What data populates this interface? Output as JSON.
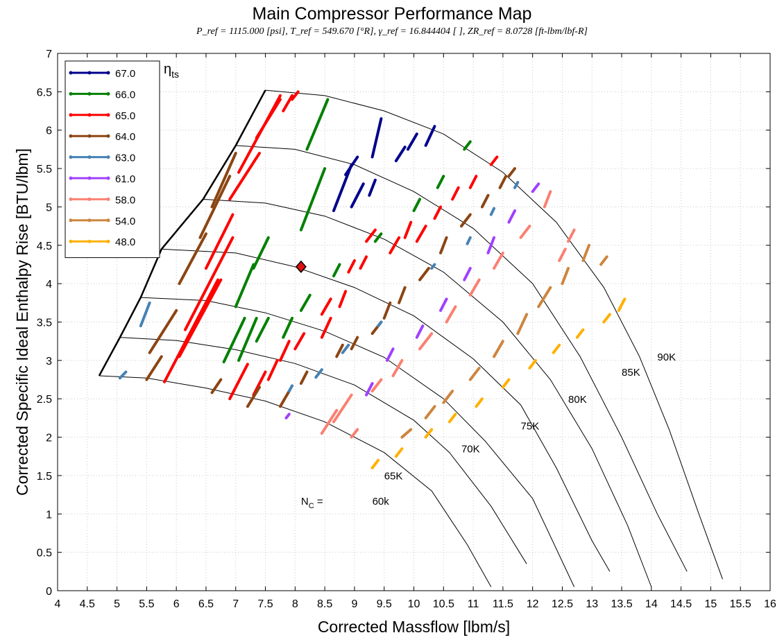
{
  "chart_data": {
    "type": "scatter",
    "title": "Main Compressor Performance Map",
    "subtitle": "P_ref = 1115.000 [psi],   T_ref = 549.670 [°R],   γ_ref = 16.844404 [ ],   ZR_ref = 8.0728 [ft-lbm/lbf-R]",
    "xlabel": "Corrected Massflow [lbm/s]",
    "ylabel": "Corrected Specific Ideal Enthalpy Rise [BTU/lbm]",
    "xlim": [
      4,
      16
    ],
    "ylim": [
      0,
      7
    ],
    "xticks": [
      "4",
      "4.5",
      "5",
      "5.5",
      "6",
      "6.5",
      "7",
      "7.5",
      "8",
      "8.5",
      "9",
      "9.5",
      "10",
      "10.5",
      "11",
      "11.5",
      "12",
      "12.5",
      "13",
      "13.5",
      "14",
      "14.5",
      "15",
      "15.5",
      "16"
    ],
    "yticks": [
      "0",
      "0.5",
      "1",
      "1.5",
      "2",
      "2.5",
      "3",
      "3.5",
      "4",
      "4.5",
      "5",
      "5.5",
      "6",
      "6.5",
      "7"
    ],
    "grid": true,
    "legend_title": "η",
    "legend_title_sub": "ts",
    "legend_position": "top-left",
    "surge_line": [
      [
        4.7,
        2.8
      ],
      [
        5.05,
        3.3
      ],
      [
        5.4,
        3.82
      ],
      [
        5.75,
        4.45
      ],
      [
        6.45,
        5.1
      ],
      [
        7.0,
        5.8
      ],
      [
        7.5,
        6.52
      ]
    ],
    "speed_lines": [
      {
        "label": "60k",
        "prefix": "N",
        "prefix_sub": "C",
        "points": [
          [
            4.7,
            2.8
          ],
          [
            5.5,
            2.77
          ],
          [
            6.5,
            2.64
          ],
          [
            7.5,
            2.47
          ],
          [
            8.5,
            2.2
          ],
          [
            9.5,
            1.8
          ],
          [
            10.3,
            1.3
          ],
          [
            10.9,
            0.6
          ],
          [
            11.3,
            0.05
          ]
        ]
      },
      {
        "label": "65K",
        "points": [
          [
            5.05,
            3.3
          ],
          [
            6,
            3.26
          ],
          [
            7,
            3.14
          ],
          [
            8,
            2.96
          ],
          [
            9,
            2.68
          ],
          [
            10,
            2.22
          ],
          [
            10.6,
            1.8
          ],
          [
            11.3,
            1.1
          ],
          [
            11.9,
            0.35
          ]
        ]
      },
      {
        "label": "70K",
        "points": [
          [
            5.4,
            3.82
          ],
          [
            6.5,
            3.78
          ],
          [
            7.5,
            3.62
          ],
          [
            8.5,
            3.38
          ],
          [
            9.5,
            3.04
          ],
          [
            10.5,
            2.5
          ],
          [
            11.2,
            1.95
          ],
          [
            12,
            1.2
          ],
          [
            12.7,
            0.05
          ]
        ]
      },
      {
        "label": "75K",
        "points": [
          [
            5.75,
            4.45
          ],
          [
            7,
            4.4
          ],
          [
            8,
            4.22
          ],
          [
            9,
            3.95
          ],
          [
            10,
            3.58
          ],
          [
            11,
            3.02
          ],
          [
            11.8,
            2.42
          ],
          [
            12.4,
            1.6
          ],
          [
            13,
            0.65
          ],
          [
            13.3,
            0.25
          ]
        ]
      },
      {
        "label": "80K",
        "points": [
          [
            6.45,
            5.1
          ],
          [
            7.5,
            5.05
          ],
          [
            8.5,
            4.88
          ],
          [
            9.5,
            4.58
          ],
          [
            10.5,
            4.15
          ],
          [
            11.5,
            3.5
          ],
          [
            12.3,
            2.75
          ],
          [
            13,
            1.85
          ],
          [
            13.6,
            0.85
          ],
          [
            14,
            0.05
          ]
        ]
      },
      {
        "label": "85K",
        "points": [
          [
            7.0,
            5.8
          ],
          [
            8,
            5.75
          ],
          [
            9,
            5.55
          ],
          [
            10,
            5.2
          ],
          [
            11,
            4.72
          ],
          [
            12,
            4.0
          ],
          [
            12.8,
            3.05
          ],
          [
            13.5,
            2.0
          ],
          [
            14.1,
            1.0
          ],
          [
            14.6,
            0.25
          ]
        ]
      },
      {
        "label": "90K",
        "points": [
          [
            7.5,
            6.52
          ],
          [
            8.5,
            6.45
          ],
          [
            9.5,
            6.25
          ],
          [
            10.5,
            5.95
          ],
          [
            11.5,
            5.45
          ],
          [
            12.4,
            4.8
          ],
          [
            13.2,
            3.95
          ],
          [
            13.8,
            3.05
          ],
          [
            14.3,
            2.1
          ],
          [
            14.8,
            1.0
          ],
          [
            15.2,
            0.15
          ]
        ]
      }
    ],
    "operating_point": {
      "x": 8.1,
      "y": 4.22,
      "marker": "diamond",
      "color": "#e01010"
    },
    "series": [
      {
        "name": "67.0",
        "color": "#00008b",
        "segments": [
          [
            8.65,
            4.95,
            8.95,
            5.55
          ],
          [
            8.95,
            5.0,
            9.15,
            5.3
          ],
          [
            8.85,
            5.42,
            9.05,
            5.65
          ],
          [
            9.3,
            5.65,
            9.45,
            6.15
          ],
          [
            9.25,
            5.15,
            9.35,
            5.35
          ],
          [
            9.7,
            5.6,
            9.85,
            5.78
          ],
          [
            9.9,
            5.75,
            10.05,
            5.95
          ],
          [
            10.2,
            5.8,
            10.35,
            6.05
          ]
        ]
      },
      {
        "name": "66.0",
        "color": "#008000",
        "segments": [
          [
            8.2,
            5.75,
            8.55,
            6.4
          ],
          [
            8.1,
            4.7,
            8.5,
            5.5
          ],
          [
            7.0,
            3.7,
            7.3,
            4.25
          ],
          [
            7.3,
            4.2,
            7.55,
            4.6
          ],
          [
            6.8,
            2.98,
            7.15,
            3.55
          ],
          [
            7.05,
            3.0,
            7.35,
            3.55
          ],
          [
            7.35,
            3.25,
            7.55,
            3.55
          ],
          [
            7.8,
            3.3,
            7.95,
            3.55
          ],
          [
            8.1,
            3.65,
            8.25,
            3.85
          ],
          [
            8.65,
            4.1,
            8.75,
            4.25
          ],
          [
            9.35,
            4.55,
            9.45,
            4.65
          ],
          [
            10.0,
            4.95,
            10.1,
            5.1
          ],
          [
            10.85,
            5.75,
            10.95,
            5.85
          ],
          [
            10.4,
            5.25,
            10.5,
            5.4
          ]
        ]
      },
      {
        "name": "65.0",
        "color": "#ff0000",
        "segments": [
          [
            5.8,
            2.72,
            6.7,
            4.05
          ],
          [
            6.05,
            3.05,
            6.75,
            4.05
          ],
          [
            6.15,
            3.4,
            6.95,
            4.6
          ],
          [
            6.5,
            4.2,
            6.95,
            4.9
          ],
          [
            6.9,
            5.1,
            7.4,
            5.7
          ],
          [
            7.05,
            5.45,
            7.75,
            6.45
          ],
          [
            7.35,
            5.9,
            7.75,
            6.4
          ],
          [
            7.8,
            6.25,
            7.95,
            6.45
          ],
          [
            7.95,
            6.4,
            8.05,
            6.5
          ],
          [
            6.9,
            2.5,
            7.2,
            2.95
          ],
          [
            7.3,
            2.55,
            7.5,
            2.85
          ],
          [
            7.55,
            2.75,
            7.7,
            3.0
          ],
          [
            7.75,
            3.0,
            7.9,
            3.25
          ],
          [
            8.0,
            3.15,
            8.15,
            3.35
          ],
          [
            8.45,
            3.3,
            8.6,
            3.55
          ],
          [
            8.45,
            3.6,
            8.6,
            3.8
          ],
          [
            8.75,
            3.7,
            8.85,
            3.9
          ],
          [
            8.9,
            4.15,
            9.0,
            4.3
          ],
          [
            9.1,
            4.2,
            9.2,
            4.35
          ],
          [
            9.2,
            4.55,
            9.35,
            4.7
          ],
          [
            9.6,
            4.4,
            9.75,
            4.6
          ],
          [
            9.85,
            4.6,
            9.95,
            4.8
          ],
          [
            10.05,
            4.55,
            10.2,
            4.75
          ],
          [
            10.35,
            4.85,
            10.45,
            5.0
          ],
          [
            10.65,
            5.1,
            10.75,
            5.25
          ],
          [
            10.95,
            5.25,
            11.05,
            5.4
          ],
          [
            11.3,
            5.55,
            11.4,
            5.65
          ]
        ]
      },
      {
        "name": "64.0",
        "color": "#8b4513",
        "segments": [
          [
            5.5,
            2.75,
            5.75,
            3.05
          ],
          [
            5.55,
            3.1,
            6.0,
            3.65
          ],
          [
            6.05,
            4.0,
            6.5,
            4.65
          ],
          [
            6.4,
            4.6,
            6.9,
            5.4
          ],
          [
            6.6,
            5.0,
            7.0,
            5.7
          ],
          [
            6.6,
            2.58,
            6.75,
            2.75
          ],
          [
            7.2,
            2.4,
            7.4,
            2.65
          ],
          [
            7.75,
            2.4,
            7.9,
            2.6
          ],
          [
            8.1,
            2.7,
            8.2,
            2.85
          ],
          [
            8.7,
            3.05,
            8.8,
            3.2
          ],
          [
            8.95,
            3.15,
            9.05,
            3.3
          ],
          [
            9.3,
            3.35,
            9.45,
            3.5
          ],
          [
            9.5,
            3.55,
            9.6,
            3.75
          ],
          [
            9.75,
            3.75,
            9.85,
            3.95
          ],
          [
            10.1,
            4.05,
            10.25,
            4.2
          ],
          [
            10.45,
            4.4,
            10.55,
            4.6
          ],
          [
            10.8,
            4.75,
            10.95,
            4.9
          ],
          [
            11.15,
            5.0,
            11.25,
            5.15
          ],
          [
            11.45,
            5.25,
            11.55,
            5.4
          ],
          [
            11.6,
            5.4,
            11.7,
            5.5
          ]
        ]
      },
      {
        "name": "63.0",
        "color": "#4682b4",
        "segments": [
          [
            5.4,
            3.45,
            5.55,
            3.75
          ],
          [
            5.05,
            2.77,
            5.15,
            2.85
          ],
          [
            7.9,
            2.6,
            7.95,
            2.67
          ],
          [
            8.35,
            2.78,
            8.45,
            2.88
          ],
          [
            8.8,
            3.1,
            8.9,
            3.2
          ],
          [
            9.4,
            3.45,
            9.45,
            3.5
          ],
          [
            10.3,
            4.2,
            10.35,
            4.25
          ],
          [
            10.9,
            4.52,
            10.95,
            4.6
          ],
          [
            11.3,
            4.9,
            11.35,
            4.98
          ],
          [
            11.7,
            5.25,
            11.75,
            5.32
          ]
        ]
      },
      {
        "name": "61.0",
        "color": "#a040ff",
        "segments": [
          [
            7.85,
            2.25,
            7.9,
            2.3
          ],
          [
            9.2,
            2.55,
            9.3,
            2.7
          ],
          [
            9.55,
            3.0,
            9.65,
            3.15
          ],
          [
            10.05,
            3.3,
            10.15,
            3.45
          ],
          [
            10.45,
            3.65,
            10.55,
            3.8
          ],
          [
            10.85,
            4.05,
            10.95,
            4.2
          ],
          [
            11.25,
            4.4,
            11.35,
            4.6
          ],
          [
            11.6,
            4.8,
            11.7,
            4.95
          ],
          [
            12.0,
            5.2,
            12.1,
            5.3
          ]
        ]
      },
      {
        "name": "58.0",
        "color": "#fa8072",
        "segments": [
          [
            8.45,
            2.05,
            8.7,
            2.35
          ],
          [
            8.65,
            2.2,
            8.95,
            2.55
          ],
          [
            9.3,
            2.6,
            9.45,
            2.75
          ],
          [
            9.65,
            2.8,
            9.8,
            3.0
          ],
          [
            10.1,
            3.15,
            10.3,
            3.35
          ],
          [
            10.55,
            3.5,
            10.7,
            3.7
          ],
          [
            10.95,
            3.85,
            11.1,
            4.05
          ],
          [
            11.35,
            4.2,
            11.5,
            4.4
          ],
          [
            11.8,
            4.6,
            11.95,
            4.75
          ],
          [
            12.2,
            5.0,
            12.3,
            5.2
          ],
          [
            12.45,
            4.3,
            12.55,
            4.45
          ],
          [
            12.6,
            4.55,
            12.7,
            4.7
          ],
          [
            8.95,
            2.0,
            9.05,
            2.1
          ]
        ]
      },
      {
        "name": "54.0",
        "color": "#cd853f",
        "segments": [
          [
            9.8,
            2.0,
            9.95,
            2.1
          ],
          [
            10.2,
            2.25,
            10.35,
            2.4
          ],
          [
            10.5,
            2.45,
            10.65,
            2.6
          ],
          [
            10.95,
            2.75,
            11.1,
            2.9
          ],
          [
            11.35,
            3.05,
            11.5,
            3.25
          ],
          [
            11.75,
            3.35,
            11.9,
            3.6
          ],
          [
            12.1,
            3.7,
            12.3,
            3.95
          ],
          [
            12.5,
            4.0,
            12.6,
            4.2
          ],
          [
            12.85,
            4.3,
            12.95,
            4.5
          ],
          [
            13.15,
            4.25,
            13.25,
            4.35
          ]
        ]
      },
      {
        "name": "48.0",
        "color": "#ffb000",
        "segments": [
          [
            9.3,
            1.6,
            9.4,
            1.7
          ],
          [
            9.7,
            1.75,
            9.8,
            1.85
          ],
          [
            10.2,
            2.0,
            10.3,
            2.1
          ],
          [
            10.6,
            2.2,
            10.7,
            2.3
          ],
          [
            11.05,
            2.4,
            11.15,
            2.5
          ],
          [
            11.5,
            2.65,
            11.6,
            2.75
          ],
          [
            11.95,
            2.9,
            12.05,
            3.0
          ],
          [
            12.35,
            3.1,
            12.45,
            3.2
          ],
          [
            12.75,
            3.3,
            12.85,
            3.4
          ],
          [
            13.2,
            3.5,
            13.3,
            3.6
          ],
          [
            13.45,
            3.65,
            13.55,
            3.8
          ]
        ]
      }
    ]
  }
}
